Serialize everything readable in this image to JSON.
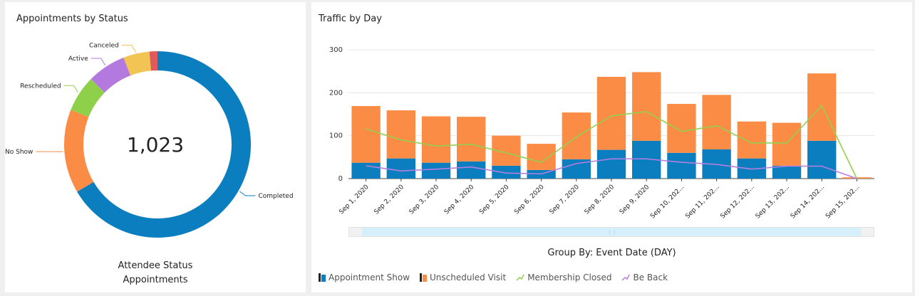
{
  "donut_card": {
    "title": "Appointments by Status",
    "total": "1,023",
    "caption_line1": "Attendee Status",
    "caption_line2": "Appointments"
  },
  "traffic_card": {
    "title": "Traffic by Day",
    "group_by": "Group By: Event Date (DAY)"
  },
  "colors": {
    "completed": "#0a7ebe",
    "no_show": "#fb8c45",
    "rescheduled": "#8fd04a",
    "active": "#b479de",
    "canceled": "#f1c453",
    "other": "#e05a5a",
    "appointment_show": "#0a7ebe",
    "unscheduled_visit": "#fb8c45",
    "membership_closed": "#96cf4e",
    "be_back": "#b77ee0"
  },
  "chart_data": [
    {
      "type": "pie",
      "title": "Appointments by Status",
      "total_label": "1,023",
      "slices": [
        {
          "label": "Completed",
          "value": 674
        },
        {
          "label": "No Show",
          "value": 147
        },
        {
          "label": "Rescheduled",
          "value": 64
        },
        {
          "label": "Active",
          "value": 68
        },
        {
          "label": "Canceled",
          "value": 46
        },
        {
          "label": "",
          "value": 14
        }
      ]
    },
    {
      "type": "bar",
      "title": "Traffic by Day",
      "categories": [
        "Sep 1, 2020",
        "Sep 2, 2020",
        "Sep 3, 2020",
        "Sep 4, 2020",
        "Sep 5, 2020",
        "Sep 6, 2020",
        "Sep 7, 2020",
        "Sep 8, 2020",
        "Sep 9, 2020",
        "Sep 10, 202...",
        "Sep 11, 202...",
        "Sep 12, 202...",
        "Sep 13, 202...",
        "Sep 14, 202...",
        "Sep 15, 202..."
      ],
      "ylim": [
        0,
        300
      ],
      "yticks": [
        0,
        100,
        200,
        300
      ],
      "series": [
        {
          "name": "Appointment Show",
          "kind": "stacked-bar",
          "values": [
            37,
            47,
            37,
            40,
            30,
            20,
            45,
            67,
            88,
            60,
            68,
            47,
            30,
            88,
            0
          ]
        },
        {
          "name": "Unscheduled Visit",
          "kind": "stacked-bar",
          "values": [
            132,
            112,
            108,
            104,
            70,
            61,
            109,
            170,
            160,
            114,
            127,
            86,
            100,
            157,
            3
          ]
        },
        {
          "name": "Membership Closed",
          "kind": "line",
          "values": [
            116,
            90,
            76,
            80,
            60,
            38,
            97,
            146,
            156,
            110,
            123,
            83,
            83,
            170,
            0
          ]
        },
        {
          "name": "Be Back",
          "kind": "line",
          "values": [
            30,
            18,
            22,
            27,
            13,
            11,
            35,
            46,
            46,
            38,
            33,
            22,
            29,
            29,
            0
          ]
        }
      ]
    }
  ]
}
